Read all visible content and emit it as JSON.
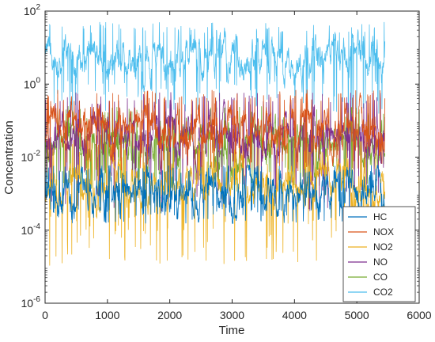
{
  "chart_data": {
    "type": "line",
    "title": "",
    "xlabel": "Time",
    "ylabel": "Concentration",
    "xlim": [
      0,
      6000
    ],
    "ylim": [
      1e-06,
      100
    ],
    "yscale": "log",
    "grid": false,
    "legend_position": "bottom-right",
    "x_ticks": [
      {
        "value": 0,
        "label": "0"
      },
      {
        "value": 1000,
        "label": "1000"
      },
      {
        "value": 2000,
        "label": "2000"
      },
      {
        "value": 3000,
        "label": "3000"
      },
      {
        "value": 4000,
        "label": "4000"
      },
      {
        "value": 5000,
        "label": "5000"
      },
      {
        "value": 6000,
        "label": "6000"
      }
    ],
    "y_ticks": [
      {
        "value": 1e-06,
        "base": "10",
        "exp": "-6"
      },
      {
        "value": 0.0001,
        "base": "10",
        "exp": "-4"
      },
      {
        "value": 0.01,
        "base": "10",
        "exp": "-2"
      },
      {
        "value": 1,
        "base": "10",
        "exp": "0"
      },
      {
        "value": 100,
        "base": "10",
        "exp": "2"
      }
    ],
    "x_range": [
      0,
      5450
    ],
    "series": [
      {
        "name": "HC",
        "color": "#0072BD",
        "band": [
          0.00015,
          0.006
        ],
        "median": 0.0012
      },
      {
        "name": "NOX",
        "color": "#D95319",
        "band": [
          0.004,
          0.7
        ],
        "median": 0.06
      },
      {
        "name": "NO2",
        "color": "#EDB120",
        "band": [
          1e-05,
          0.03
        ],
        "median": 0.002
      },
      {
        "name": "NO",
        "color": "#7E2F8E",
        "band": [
          0.0003,
          0.6
        ],
        "median": 0.04
      },
      {
        "name": "CO",
        "color": "#77AC30",
        "band": [
          0.0008,
          0.25
        ],
        "median": 0.02
      },
      {
        "name": "CO2",
        "color": "#4DBEEE",
        "band": [
          0.15,
          50
        ],
        "median": 5
      }
    ]
  }
}
